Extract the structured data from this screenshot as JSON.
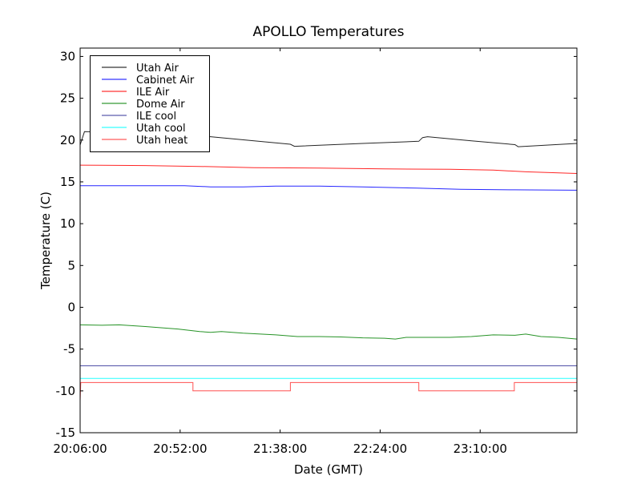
{
  "chart_data": {
    "type": "line",
    "title": "APOLLO Temperatures",
    "xlabel": "Date (GMT)",
    "ylabel": "Temperature (C)",
    "x_units": "minutes since 20:06:00 GMT",
    "xlim": [
      0,
      228.5
    ],
    "ylim": [
      -15,
      31
    ],
    "x_ticks": [
      {
        "value": 0,
        "label": "20:06:00"
      },
      {
        "value": 46,
        "label": "20:52:00"
      },
      {
        "value": 92,
        "label": "21:38:00"
      },
      {
        "value": 138,
        "label": "22:24:00"
      },
      {
        "value": 184,
        "label": "23:10:00"
      }
    ],
    "y_ticks": [
      -15,
      -10,
      -5,
      0,
      5,
      10,
      15,
      20,
      25,
      30
    ],
    "grid": false,
    "legend_position": "top-left",
    "series": [
      {
        "name": "Utah Air",
        "color": "#000000",
        "points": [
          [
            0,
            19.4
          ],
          [
            2,
            21.0
          ],
          [
            30,
            20.8
          ],
          [
            60,
            20.4
          ],
          [
            80,
            19.9
          ],
          [
            96.7,
            19.5
          ],
          [
            98.6,
            19.25
          ],
          [
            130,
            19.6
          ],
          [
            155.8,
            19.85
          ],
          [
            157.5,
            20.3
          ],
          [
            159.8,
            20.4
          ],
          [
            180,
            19.9
          ],
          [
            200,
            19.45
          ],
          [
            201.5,
            19.2
          ],
          [
            228.5,
            19.6
          ]
        ]
      },
      {
        "name": "Cabinet Air",
        "color": "#0000ff",
        "points": [
          [
            0,
            14.55
          ],
          [
            48,
            14.55
          ],
          [
            60,
            14.4
          ],
          [
            75,
            14.4
          ],
          [
            90,
            14.5
          ],
          [
            110,
            14.5
          ],
          [
            130,
            14.4
          ],
          [
            155,
            14.25
          ],
          [
            175,
            14.1
          ],
          [
            200,
            14.05
          ],
          [
            228.5,
            14.0
          ]
        ]
      },
      {
        "name": "ILE Air",
        "color": "#ff0000",
        "points": [
          [
            0,
            17.0
          ],
          [
            30,
            16.95
          ],
          [
            55,
            16.85
          ],
          [
            80,
            16.7
          ],
          [
            110,
            16.65
          ],
          [
            140,
            16.55
          ],
          [
            170,
            16.5
          ],
          [
            190,
            16.4
          ],
          [
            205,
            16.2
          ],
          [
            228.5,
            16.0
          ]
        ]
      },
      {
        "name": "Dome Air",
        "color": "#008000",
        "points": [
          [
            0,
            -2.1
          ],
          [
            10,
            -2.15
          ],
          [
            18,
            -2.1
          ],
          [
            30,
            -2.3
          ],
          [
            45,
            -2.6
          ],
          [
            55,
            -2.9
          ],
          [
            60,
            -3.0
          ],
          [
            65,
            -2.9
          ],
          [
            75,
            -3.1
          ],
          [
            90,
            -3.3
          ],
          [
            100,
            -3.5
          ],
          [
            110,
            -3.5
          ],
          [
            120,
            -3.55
          ],
          [
            130,
            -3.65
          ],
          [
            140,
            -3.7
          ],
          [
            145,
            -3.8
          ],
          [
            150,
            -3.6
          ],
          [
            160,
            -3.6
          ],
          [
            170,
            -3.6
          ],
          [
            180,
            -3.5
          ],
          [
            190,
            -3.3
          ],
          [
            200,
            -3.35
          ],
          [
            205,
            -3.2
          ],
          [
            212,
            -3.5
          ],
          [
            220,
            -3.6
          ],
          [
            228.5,
            -3.8
          ]
        ]
      },
      {
        "name": "ILE cool",
        "color": "#333399",
        "points": [
          [
            0,
            -7.0
          ],
          [
            228.5,
            -7.0
          ]
        ]
      },
      {
        "name": "Utah cool",
        "color": "#00ffff",
        "points": [
          [
            0,
            -8.5
          ],
          [
            228.5,
            -8.5
          ]
        ]
      },
      {
        "name": "Utah heat",
        "color": "#ff3333",
        "points": [
          [
            0,
            -11.2
          ],
          [
            0.3,
            -9
          ],
          [
            51.9,
            -9
          ],
          [
            51.9,
            -10
          ],
          [
            96.7,
            -10
          ],
          [
            96.7,
            -9
          ],
          [
            155.8,
            -9
          ],
          [
            155.8,
            -10
          ],
          [
            199.7,
            -10
          ],
          [
            199.7,
            -9
          ],
          [
            228.5,
            -9
          ]
        ]
      }
    ]
  }
}
